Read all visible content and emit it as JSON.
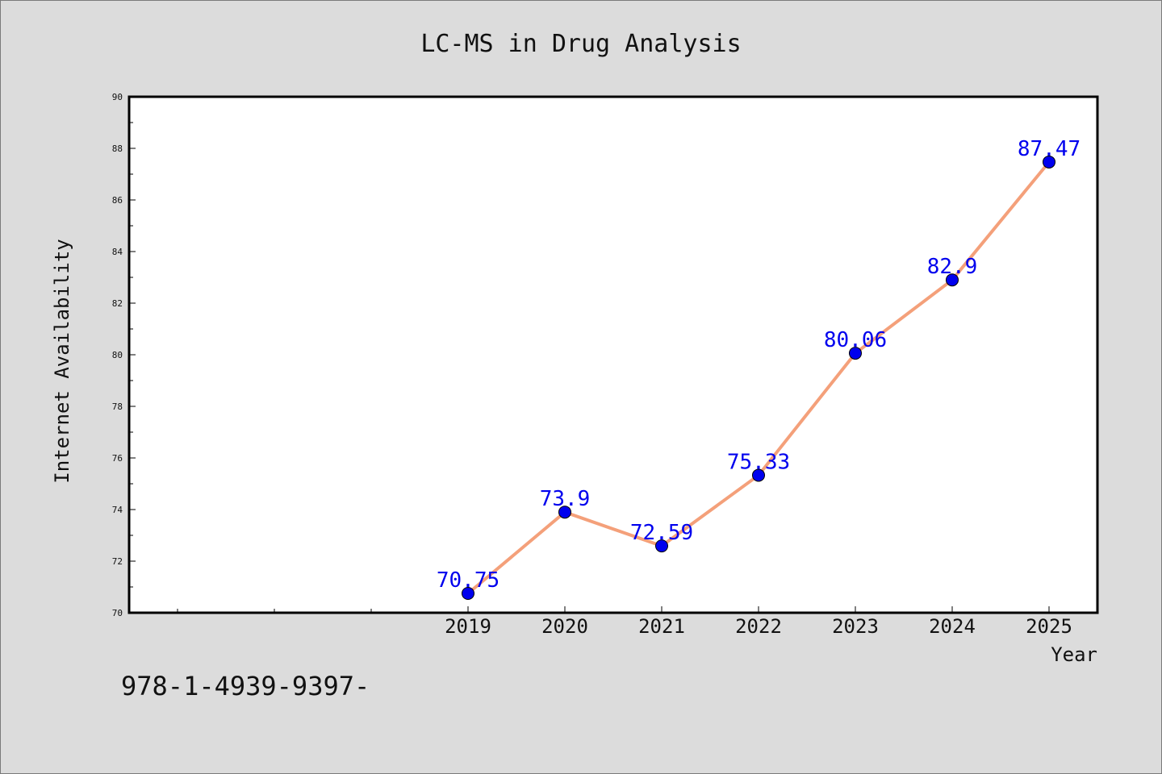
{
  "chart_data": {
    "type": "line",
    "title": "LC-MS in Drug Analysis",
    "xlabel": "Year",
    "ylabel": "Internet Availability",
    "categories": [
      "2019",
      "2020",
      "2021",
      "2022",
      "2023",
      "2024",
      "2025"
    ],
    "series": [
      {
        "values": [
          70.75,
          73.9,
          72.59,
          75.33,
          80.06,
          82.9,
          87.47
        ],
        "labels": [
          "70.75",
          "73.9",
          "72.59",
          "75.33",
          "80.06",
          "82.9",
          "87.47"
        ],
        "line_color": "#f4a07a",
        "marker_color": "#0000ee",
        "label_color": "#0000ee"
      }
    ],
    "ylim": [
      70,
      90
    ],
    "yticks": [
      "70",
      "72",
      "74",
      "76",
      "78",
      "80",
      "82",
      "84",
      "86",
      "88",
      "90"
    ],
    "grid": false,
    "legend": "none"
  },
  "footer": {
    "code": "978-1-4939-9397-"
  },
  "colors": {
    "background": "#dcdcdc",
    "plot_background": "#ffffff",
    "axis": "#000000"
  }
}
